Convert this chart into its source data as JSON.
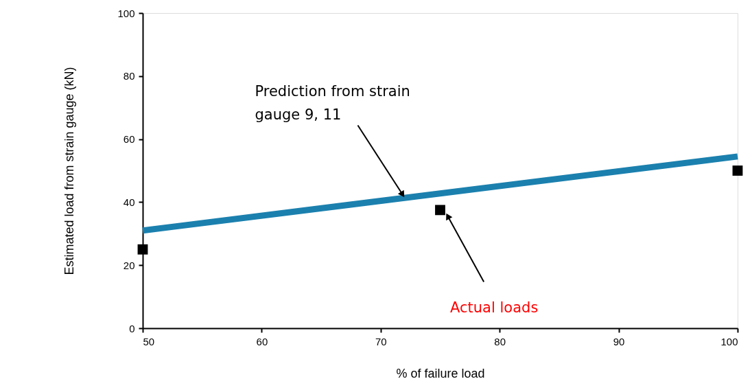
{
  "chart_data": {
    "type": "scatter",
    "xlabel": "% of failure load",
    "ylabel": "Estimated load from strain gauge (kN)",
    "xlim": [
      50,
      100
    ],
    "xticks": [
      50,
      60,
      70,
      80,
      90,
      100
    ],
    "ylim": [
      0,
      100
    ],
    "yticks": [
      0,
      20,
      40,
      60,
      80,
      100
    ],
    "grid": false,
    "series": [
      {
        "type": "line",
        "color": "#1b80ae",
        "x": [
          50,
          100
        ],
        "values": [
          31,
          54.5
        ],
        "marker": "none",
        "line_style": "solid"
      },
      {
        "color": "#000000",
        "x": [
          50,
          75,
          100
        ],
        "values": [
          25,
          37.5,
          50
        ],
        "marker": "square"
      }
    ],
    "annotations": [
      {
        "text": "Prediction from strain gauge 9, 11",
        "x": 72,
        "y": 41.5
      },
      {
        "text": "Actual loads",
        "x": 75.5,
        "y": 36.5
      }
    ]
  }
}
